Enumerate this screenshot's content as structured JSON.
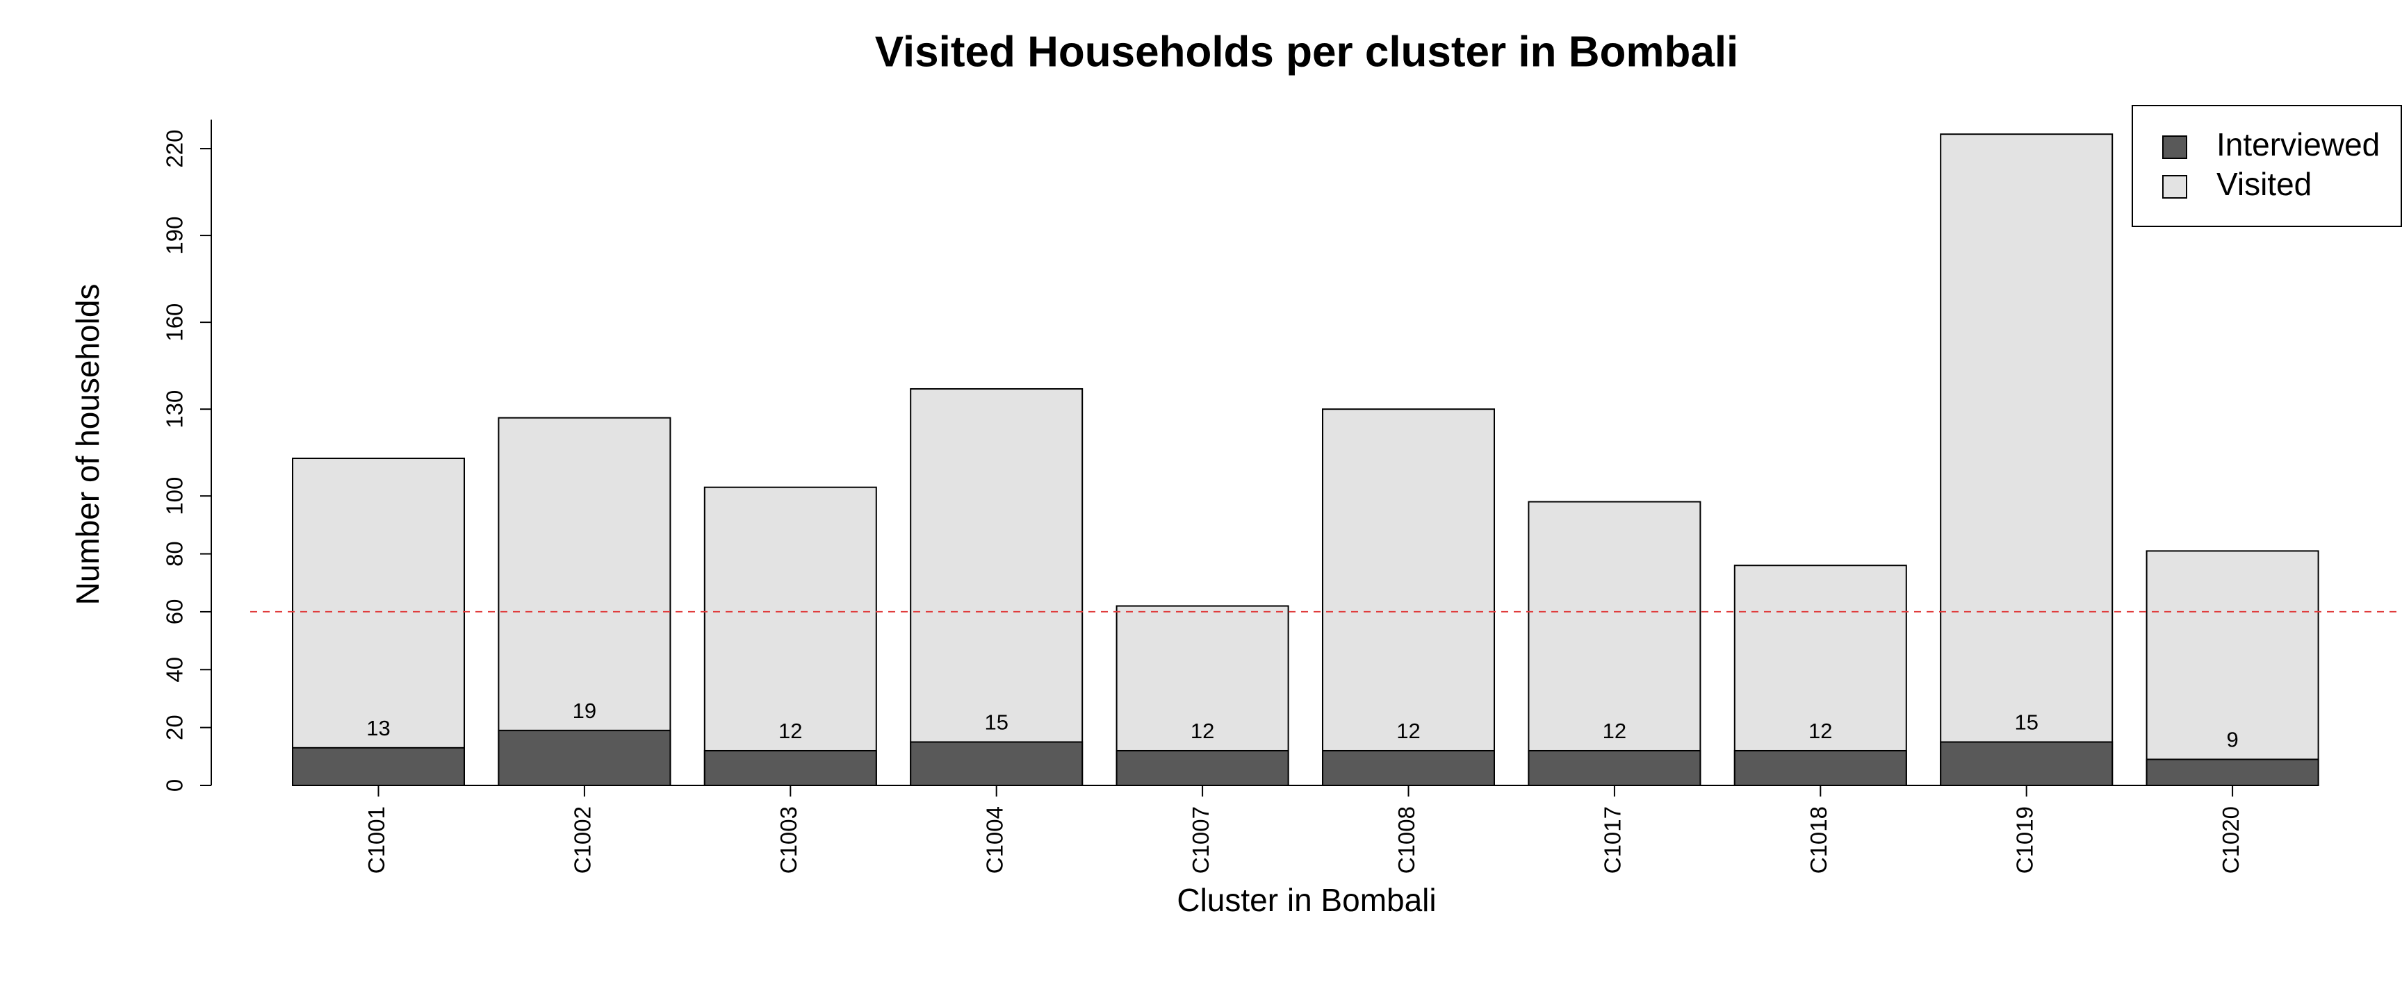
{
  "chart_data": {
    "type": "bar",
    "mode": "overlap",
    "title": "Visited Households per cluster in Bombali",
    "x_label": "Cluster in Bombali",
    "y_label": "Number of households",
    "categories": [
      "C1001",
      "C1002",
      "C1003",
      "C1004",
      "C1007",
      "C1008",
      "C1017",
      "C1018",
      "C1019",
      "C1020"
    ],
    "series": [
      {
        "name": "Interviewed",
        "color": "#595959",
        "values": [
          13,
          19,
          12,
          15,
          12,
          12,
          12,
          12,
          15,
          9
        ],
        "show_labels": true
      },
      {
        "name": "Visited",
        "color": "#e3e3e3",
        "values": [
          113,
          127,
          103,
          137,
          62,
          130,
          98,
          76,
          225,
          81
        ]
      }
    ],
    "ylim": [
      0,
      230
    ],
    "yticks": [
      0,
      20,
      40,
      60,
      80,
      100,
      130,
      160,
      190,
      220
    ],
    "hline": {
      "value": 60,
      "color": "#e03c3c"
    },
    "legend": "top-right"
  }
}
